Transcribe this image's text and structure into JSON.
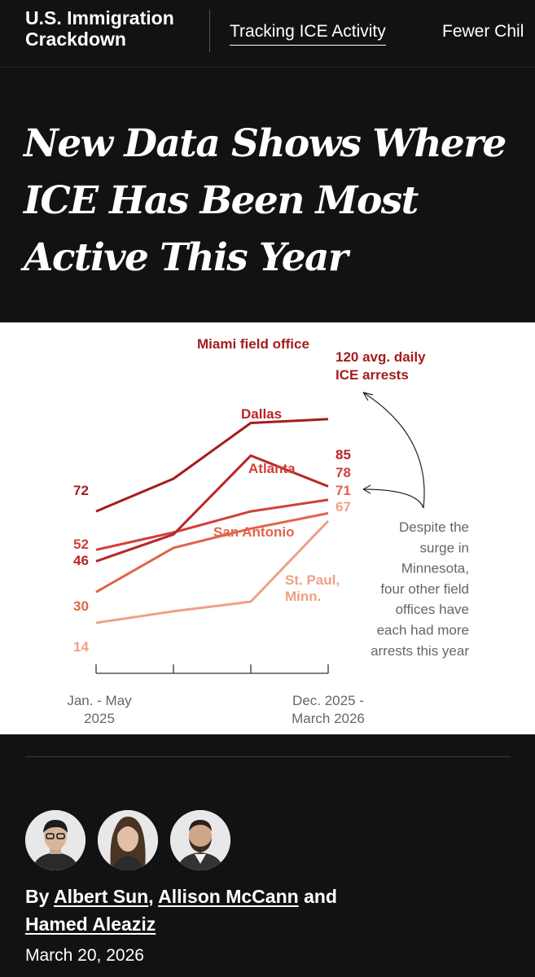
{
  "nav": {
    "section_title": "U.S. Immigration Crackdown",
    "links": [
      "Tracking ICE Activity",
      "Fewer Chil"
    ]
  },
  "headline": "New Data Shows Where ICE Has Been Most Active This Year",
  "chart_data": {
    "type": "line",
    "x": [
      "Jan. - May 2025",
      "",
      "",
      "Dec. 2025 - March 2026"
    ],
    "xlabel": "",
    "ylabel": "",
    "series": [
      {
        "name": "Miami field office",
        "values": [
          72,
          89,
          118,
          120
        ],
        "color": "#a51c1c",
        "start_label": "72",
        "end_label": "120 avg. daily ICE arrests"
      },
      {
        "name": "Dallas",
        "values": [
          46,
          60,
          101,
          85
        ],
        "color": "#b8252a",
        "start_label": "46",
        "end_label": "85"
      },
      {
        "name": "Atlanta",
        "values": [
          52,
          61,
          72,
          78
        ],
        "color": "#d1403a",
        "start_label": "52",
        "end_label": "78"
      },
      {
        "name": "San Antonio",
        "values": [
          30,
          53,
          63,
          71
        ],
        "color": "#e0644a",
        "start_label": "30",
        "end_label": "71"
      },
      {
        "name": "St. Paul, Minn.",
        "values": [
          14,
          20,
          25,
          67
        ],
        "color": "#eea184",
        "start_label": "14",
        "end_label": "67"
      }
    ],
    "annotation": "Despite the surge in Minnesota, four other field offices have each had more arrests this year",
    "ylim": [
      0,
      130
    ]
  },
  "byline": {
    "prefix": "By",
    "authors": [
      "Albert Sun",
      "Allison McCann",
      "Hamed Aleaziz"
    ],
    "sep1": ",",
    "and": "and"
  },
  "date": "March 20, 2026"
}
